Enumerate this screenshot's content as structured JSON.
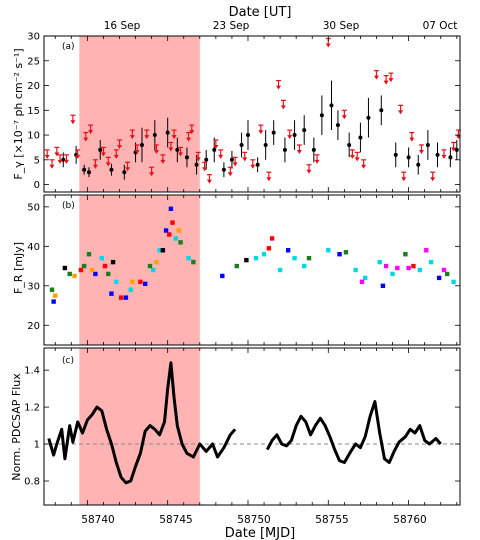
{
  "figure": {
    "top_axis_label": "Date [UT]",
    "top_tick_labels": [
      "16 Sep",
      "23 Sep",
      "30 Sep",
      "07 Oct"
    ],
    "bottom_axis_label": "Date [MJD]",
    "x_tick_labels": [
      "58740",
      "58745",
      "58750",
      "58755",
      "58760"
    ],
    "shade_color": "#ffb3b3",
    "shaded_range": [
      58739.5,
      58747.0
    ]
  },
  "chart_data": [
    {
      "panel": "(a)",
      "type": "scatter",
      "ylabel": "F_γ [×10⁻⁷ ph cm⁻² s⁻¹]",
      "xlim": [
        58737.3,
        58763.2
      ],
      "ylim": [
        -1.5,
        30
      ],
      "yticks": [
        0,
        5,
        10,
        15,
        20,
        25,
        30
      ],
      "detections": {
        "color": "#000000",
        "points": [
          [
            58738.5,
            5.0,
            1.5
          ],
          [
            58739.3,
            6.0,
            1.8
          ],
          [
            58739.8,
            3.0,
            1.0
          ],
          [
            58740.1,
            2.5,
            1.0
          ],
          [
            58740.8,
            7.0,
            2.0
          ],
          [
            58741.5,
            3.0,
            1.2
          ],
          [
            58742.3,
            2.5,
            1.5
          ],
          [
            58743.0,
            6.5,
            2.0
          ],
          [
            58743.4,
            8.0,
            3.5
          ],
          [
            58744.2,
            10.0,
            3.0
          ],
          [
            58745.0,
            10.5,
            3.0
          ],
          [
            58745.6,
            7.0,
            2.5
          ],
          [
            58746.2,
            5.5,
            2.0
          ],
          [
            58746.8,
            4.0,
            2.0
          ],
          [
            58747.4,
            5.0,
            2.0
          ],
          [
            58747.9,
            7.0,
            2.5
          ],
          [
            58748.5,
            3.0,
            1.5
          ],
          [
            58749.0,
            5.0,
            1.8
          ],
          [
            58749.6,
            8.0,
            2.5
          ],
          [
            58750.0,
            10.0,
            3.0
          ],
          [
            58750.6,
            4.0,
            1.5
          ],
          [
            58751.1,
            8.0,
            3.0
          ],
          [
            58751.6,
            10.5,
            2.5
          ],
          [
            58752.3,
            7.0,
            2.5
          ],
          [
            58752.9,
            10.0,
            3.0
          ],
          [
            58753.5,
            11.0,
            3.0
          ],
          [
            58754.1,
            7.0,
            2.5
          ],
          [
            58754.6,
            14.0,
            4.0
          ],
          [
            58755.2,
            16.0,
            5.0
          ],
          [
            58755.6,
            12.0,
            3.0
          ],
          [
            58756.3,
            8.0,
            2.5
          ],
          [
            58757.0,
            9.5,
            3.0
          ],
          [
            58757.5,
            13.5,
            4.0
          ],
          [
            58758.3,
            15.0,
            3.0
          ],
          [
            58759.2,
            6.0,
            2.5
          ],
          [
            58760.0,
            5.5,
            2.0
          ],
          [
            58760.6,
            4.0,
            2.0
          ],
          [
            58761.2,
            8.0,
            3.0
          ],
          [
            58761.8,
            6.0,
            2.5
          ],
          [
            58762.6,
            5.5,
            2.0
          ],
          [
            58763.0,
            7.0,
            2.0
          ]
        ]
      },
      "upper_limits": {
        "color": "#e8101a",
        "points": [
          [
            58737.5,
            7.0
          ],
          [
            58737.8,
            5.0
          ],
          [
            58738.1,
            7.5
          ],
          [
            58738.3,
            6.0
          ],
          [
            58738.7,
            6.0
          ],
          [
            58739.1,
            14.0
          ],
          [
            58739.4,
            7.0
          ],
          [
            58739.9,
            10.5
          ],
          [
            58740.2,
            12.0
          ],
          [
            58740.5,
            5.0
          ],
          [
            58741.0,
            7.5
          ],
          [
            58741.3,
            5.5
          ],
          [
            58741.8,
            7.0
          ],
          [
            58742.0,
            9.0
          ],
          [
            58742.5,
            4.5
          ],
          [
            58742.8,
            11.0
          ],
          [
            58743.1,
            8.0
          ],
          [
            58743.7,
            11.0
          ],
          [
            58744.0,
            3.5
          ],
          [
            58744.3,
            8.0
          ],
          [
            58744.7,
            6.0
          ],
          [
            58745.2,
            8.5
          ],
          [
            58745.4,
            11.0
          ],
          [
            58745.8,
            7.5
          ],
          [
            58746.3,
            10.5
          ],
          [
            58746.5,
            12.0
          ],
          [
            58746.9,
            6.5
          ],
          [
            58747.3,
            4.5
          ],
          [
            58747.6,
            2.0
          ],
          [
            58748.0,
            9.0
          ],
          [
            58748.3,
            7.0
          ],
          [
            58748.9,
            3.5
          ],
          [
            58749.2,
            5.5
          ],
          [
            58749.8,
            6.5
          ],
          [
            58750.3,
            5.0
          ],
          [
            58750.8,
            12.0
          ],
          [
            58751.3,
            2.5
          ],
          [
            58751.9,
            21.0
          ],
          [
            58752.2,
            17.0
          ],
          [
            58752.6,
            11.0
          ],
          [
            58753.2,
            8.0
          ],
          [
            58753.8,
            4.0
          ],
          [
            58754.3,
            6.0
          ],
          [
            58755.0,
            29.5
          ],
          [
            58756.0,
            15.0
          ],
          [
            58756.5,
            7.0
          ],
          [
            58756.8,
            6.5
          ],
          [
            58757.2,
            5.0
          ],
          [
            58758.0,
            23.0
          ],
          [
            58758.6,
            22.0
          ],
          [
            58758.9,
            22.5
          ],
          [
            58759.5,
            16.0
          ],
          [
            58759.7,
            2.5
          ],
          [
            58760.2,
            10.5
          ],
          [
            58760.8,
            8.0
          ],
          [
            58761.5,
            2.5
          ],
          [
            58762.2,
            7.0
          ],
          [
            58762.8,
            8.5
          ],
          [
            58763.1,
            11.0
          ]
        ]
      }
    },
    {
      "panel": "(b)",
      "type": "scatter",
      "ylabel": "F_R [mJy]",
      "xlim": [
        58737.3,
        58763.2
      ],
      "ylim": [
        15,
        53
      ],
      "yticks": [
        20,
        30,
        40,
        50
      ],
      "series": [
        {
          "color": "#0000ff",
          "points": [
            [
              58737.9,
              26
            ],
            [
              58740.5,
              33
            ],
            [
              58741.5,
              28
            ],
            [
              58742.4,
              27
            ],
            [
              58743.6,
              30.5
            ],
            [
              58744.9,
              44
            ],
            [
              58745.2,
              49.5
            ],
            [
              58748.4,
              32.5
            ],
            [
              58752.5,
              39
            ],
            [
              58755.7,
              38
            ],
            [
              58758.4,
              30
            ],
            [
              58761.9,
              32
            ]
          ]
        },
        {
          "color": "#ff0000",
          "points": [
            [
              58739.6,
              34
            ],
            [
              58741.1,
              35
            ],
            [
              58742.1,
              27
            ],
            [
              58743.3,
              31
            ],
            [
              58745.1,
              43
            ],
            [
              58745.3,
              46
            ],
            [
              58751.3,
              39.5
            ],
            [
              58751.5,
              42
            ],
            [
              58760.3,
              35
            ]
          ]
        },
        {
          "color": "#00d8e8",
          "points": [
            [
              58740.9,
              37
            ],
            [
              58741.8,
              31
            ],
            [
              58742.7,
              29
            ],
            [
              58744.1,
              34
            ],
            [
              58744.5,
              39
            ],
            [
              58745.5,
              42
            ],
            [
              58746.3,
              37
            ],
            [
              58750.5,
              37
            ],
            [
              58751.0,
              38
            ],
            [
              58752.0,
              34
            ],
            [
              58752.9,
              37
            ],
            [
              58753.5,
              35
            ],
            [
              58755.0,
              39
            ],
            [
              58756.7,
              34
            ],
            [
              58757.3,
              32
            ],
            [
              58758.2,
              36
            ],
            [
              58759.0,
              33
            ],
            [
              58760.7,
              34
            ],
            [
              58761.4,
              36
            ],
            [
              58762.8,
              31
            ]
          ]
        },
        {
          "color": "#1a7f1a",
          "points": [
            [
              58737.8,
              29
            ],
            [
              58738.9,
              33
            ],
            [
              58739.8,
              35
            ],
            [
              58740.1,
              38
            ],
            [
              58741.3,
              33
            ],
            [
              58743.9,
              35
            ],
            [
              58745.8,
              41
            ],
            [
              58746.6,
              36
            ],
            [
              58749.3,
              35
            ],
            [
              58753.8,
              37
            ],
            [
              58756.1,
              38.5
            ],
            [
              58759.8,
              38
            ],
            [
              58762.4,
              33
            ]
          ]
        },
        {
          "color": "#ffa000",
          "points": [
            [
              58738.0,
              27.5
            ],
            [
              58739.2,
              32.5
            ],
            [
              58740.3,
              34
            ],
            [
              58742.8,
              31
            ],
            [
              58744.3,
              36
            ],
            [
              58745.7,
              44
            ]
          ]
        },
        {
          "color": "#000000",
          "points": [
            [
              58738.6,
              34.5
            ],
            [
              58741.6,
              36
            ],
            [
              58744.7,
              39
            ],
            [
              58749.9,
              36.5
            ]
          ]
        },
        {
          "color": "#ff00ff",
          "points": [
            [
              58757.1,
              31
            ],
            [
              58758.6,
              35
            ],
            [
              58759.3,
              34.5
            ],
            [
              58760.0,
              34.5
            ],
            [
              58761.1,
              39
            ],
            [
              58762.2,
              34
            ]
          ]
        }
      ]
    },
    {
      "panel": "(c)",
      "type": "line",
      "ylabel": "Norm. PDCSAP Flux",
      "xlim": [
        58737.3,
        58763.2
      ],
      "ylim": [
        0.67,
        1.52
      ],
      "yticks": [
        0.8,
        1.0,
        1.2,
        1.4
      ],
      "reference_line": 1.0,
      "segments": [
        [
          [
            58737.6,
            1.03
          ],
          [
            58737.9,
            0.94
          ],
          [
            58738.1,
            1.0
          ],
          [
            58738.4,
            1.08
          ],
          [
            58738.6,
            0.92
          ],
          [
            58738.9,
            1.1
          ],
          [
            58739.1,
            1.01
          ],
          [
            58739.4,
            1.12
          ],
          [
            58739.7,
            1.06
          ],
          [
            58740.0,
            1.13
          ],
          [
            58740.3,
            1.16
          ],
          [
            58740.6,
            1.2
          ],
          [
            58740.9,
            1.18
          ],
          [
            58741.2,
            1.08
          ],
          [
            58741.5,
            1.0
          ],
          [
            58741.8,
            0.9
          ],
          [
            58742.1,
            0.82
          ],
          [
            58742.4,
            0.79
          ],
          [
            58742.7,
            0.8
          ],
          [
            58743.0,
            0.88
          ],
          [
            58743.3,
            0.95
          ],
          [
            58743.6,
            1.07
          ],
          [
            58743.9,
            1.1
          ],
          [
            58744.2,
            1.08
          ],
          [
            58744.5,
            1.05
          ],
          [
            58744.8,
            1.12
          ],
          [
            58745.0,
            1.3
          ],
          [
            58745.2,
            1.44
          ],
          [
            58745.4,
            1.25
          ],
          [
            58745.6,
            1.1
          ],
          [
            58745.9,
            1.0
          ],
          [
            58746.2,
            0.95
          ],
          [
            58746.6,
            0.93
          ],
          [
            58747.0,
            1.0
          ],
          [
            58747.4,
            0.96
          ],
          [
            58747.8,
            1.0
          ],
          [
            58748.1,
            0.93
          ],
          [
            58748.5,
            0.98
          ],
          [
            58748.9,
            1.05
          ],
          [
            58749.2,
            1.08
          ]
        ],
        [
          [
            58751.2,
            0.97
          ],
          [
            58751.5,
            1.02
          ],
          [
            58751.8,
            1.05
          ],
          [
            58752.1,
            1.0
          ],
          [
            58752.4,
            0.99
          ],
          [
            58752.7,
            1.02
          ],
          [
            58753.0,
            1.1
          ],
          [
            58753.3,
            1.15
          ],
          [
            58753.6,
            1.12
          ],
          [
            58753.9,
            1.05
          ],
          [
            58754.2,
            1.1
          ],
          [
            58754.5,
            1.14
          ],
          [
            58754.8,
            1.1
          ],
          [
            58755.1,
            1.04
          ],
          [
            58755.4,
            0.97
          ],
          [
            58755.7,
            0.91
          ],
          [
            58756.0,
            0.9
          ],
          [
            58756.4,
            0.96
          ],
          [
            58756.7,
            1.0
          ],
          [
            58757.0,
            0.98
          ],
          [
            58757.3,
            1.04
          ],
          [
            58757.6,
            1.15
          ],
          [
            58757.9,
            1.23
          ],
          [
            58758.2,
            1.06
          ],
          [
            58758.5,
            0.92
          ],
          [
            58758.8,
            0.9
          ],
          [
            58759.1,
            0.96
          ],
          [
            58759.4,
            1.01
          ],
          [
            58759.8,
            1.04
          ],
          [
            58760.1,
            1.08
          ],
          [
            58760.4,
            1.06
          ],
          [
            58760.7,
            1.1
          ],
          [
            58761.0,
            1.02
          ],
          [
            58761.3,
            1.0
          ],
          [
            58761.7,
            1.03
          ],
          [
            58762.0,
            1.0
          ]
        ]
      ]
    }
  ]
}
